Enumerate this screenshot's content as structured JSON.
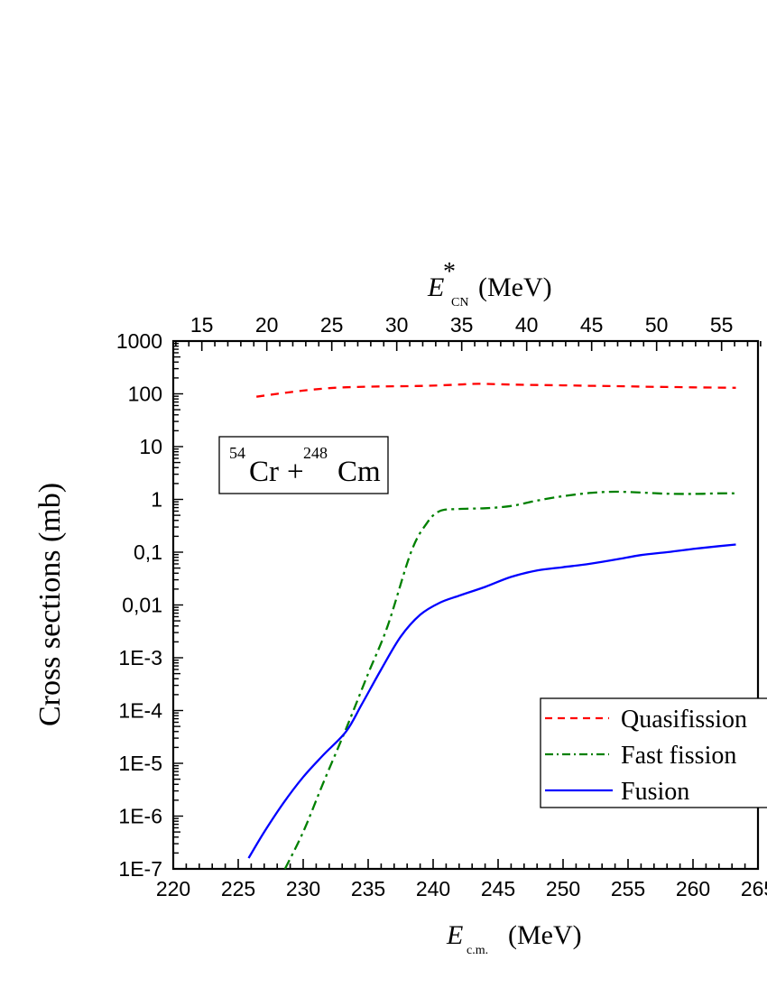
{
  "chart_data": {
    "type": "line",
    "title": "",
    "annotation": {
      "reaction_label": {
        "projectile_mass": "54",
        "projectile": "Cr",
        "plus": "+",
        "target_mass": "248",
        "target": "Cm"
      }
    },
    "xlabel": {
      "symbol": "E",
      "subscript": "c.m.",
      "unit": "(MeV)"
    },
    "x2label": {
      "symbol": "E",
      "superscript": "*",
      "subscript": "CN",
      "unit": "(MeV)"
    },
    "ylabel": "Cross sections (mb)",
    "xlim": [
      220,
      265
    ],
    "ylim": [
      1e-07,
      1000
    ],
    "yscale": "log",
    "x_ticks": [
      "220",
      "225",
      "230",
      "235",
      "240",
      "245",
      "250",
      "255",
      "260",
      "265"
    ],
    "x2_ticks": [
      "15",
      "20",
      "25",
      "30",
      "35",
      "40",
      "45",
      "50",
      "55"
    ],
    "x2_offset_mev": 207.2,
    "y_ticks": [
      "1000",
      "100",
      "10",
      "1",
      "0,1",
      "0,01",
      "1E-3",
      "1E-4",
      "1E-5",
      "1E-6",
      "1E-7"
    ],
    "grid": false,
    "legend_position": "lower right",
    "series": [
      {
        "name": "Quasifission",
        "color": "#ff0000",
        "style": "dashed",
        "x": [
          226.4,
          228,
          230,
          232,
          234,
          236,
          238,
          240,
          242,
          243.5,
          246,
          248,
          250,
          252,
          254,
          256,
          258,
          260,
          262,
          263.3
        ],
        "y": [
          88,
          100,
          115,
          128,
          135,
          138,
          140,
          143,
          150,
          155,
          150,
          147,
          145,
          142,
          140,
          137,
          135,
          133,
          131,
          130
        ]
      },
      {
        "name": "Fast fission",
        "color": "#008000",
        "style": "dashdot",
        "x": [
          228.6,
          230,
          231.5,
          233.3,
          235,
          236.5,
          238.3,
          239.5,
          240.5,
          242,
          244,
          246,
          248,
          250,
          252,
          254,
          256,
          258,
          260,
          262,
          263.3
        ],
        "y": [
          1e-07,
          5e-07,
          4e-06,
          4.5e-05,
          0.0005,
          0.004,
          0.1,
          0.35,
          0.6,
          0.66,
          0.68,
          0.75,
          0.95,
          1.15,
          1.32,
          1.4,
          1.35,
          1.28,
          1.27,
          1.3,
          1.3
        ],
        "ref_labels": [
          "1E-7",
          "0,1",
          "1"
        ]
      },
      {
        "name": "Fusion",
        "color": "#0000ff",
        "style": "solid",
        "x": [
          225.8,
          227,
          228.5,
          230,
          231.5,
          233.3,
          234.5,
          236,
          237.5,
          239,
          240.5,
          242,
          244,
          246,
          248,
          250,
          252,
          254,
          256,
          258,
          260,
          262,
          263.3
        ],
        "y": [
          1.6e-07,
          5e-07,
          1.8e-06,
          5.5e-06,
          1.4e-05,
          4e-05,
          0.00013,
          0.0006,
          0.0025,
          0.0065,
          0.011,
          0.015,
          0.022,
          0.034,
          0.045,
          0.052,
          0.06,
          0.072,
          0.088,
          0.1,
          0.115,
          0.13,
          0.14
        ]
      }
    ]
  },
  "legend": {
    "items": [
      {
        "label": "Quasifission",
        "color": "#ff0000",
        "style": "dashed"
      },
      {
        "label": "Fast fission",
        "color": "#008000",
        "style": "dashdot"
      },
      {
        "label": "Fusion",
        "color": "#0000ff",
        "style": "solid"
      }
    ]
  }
}
